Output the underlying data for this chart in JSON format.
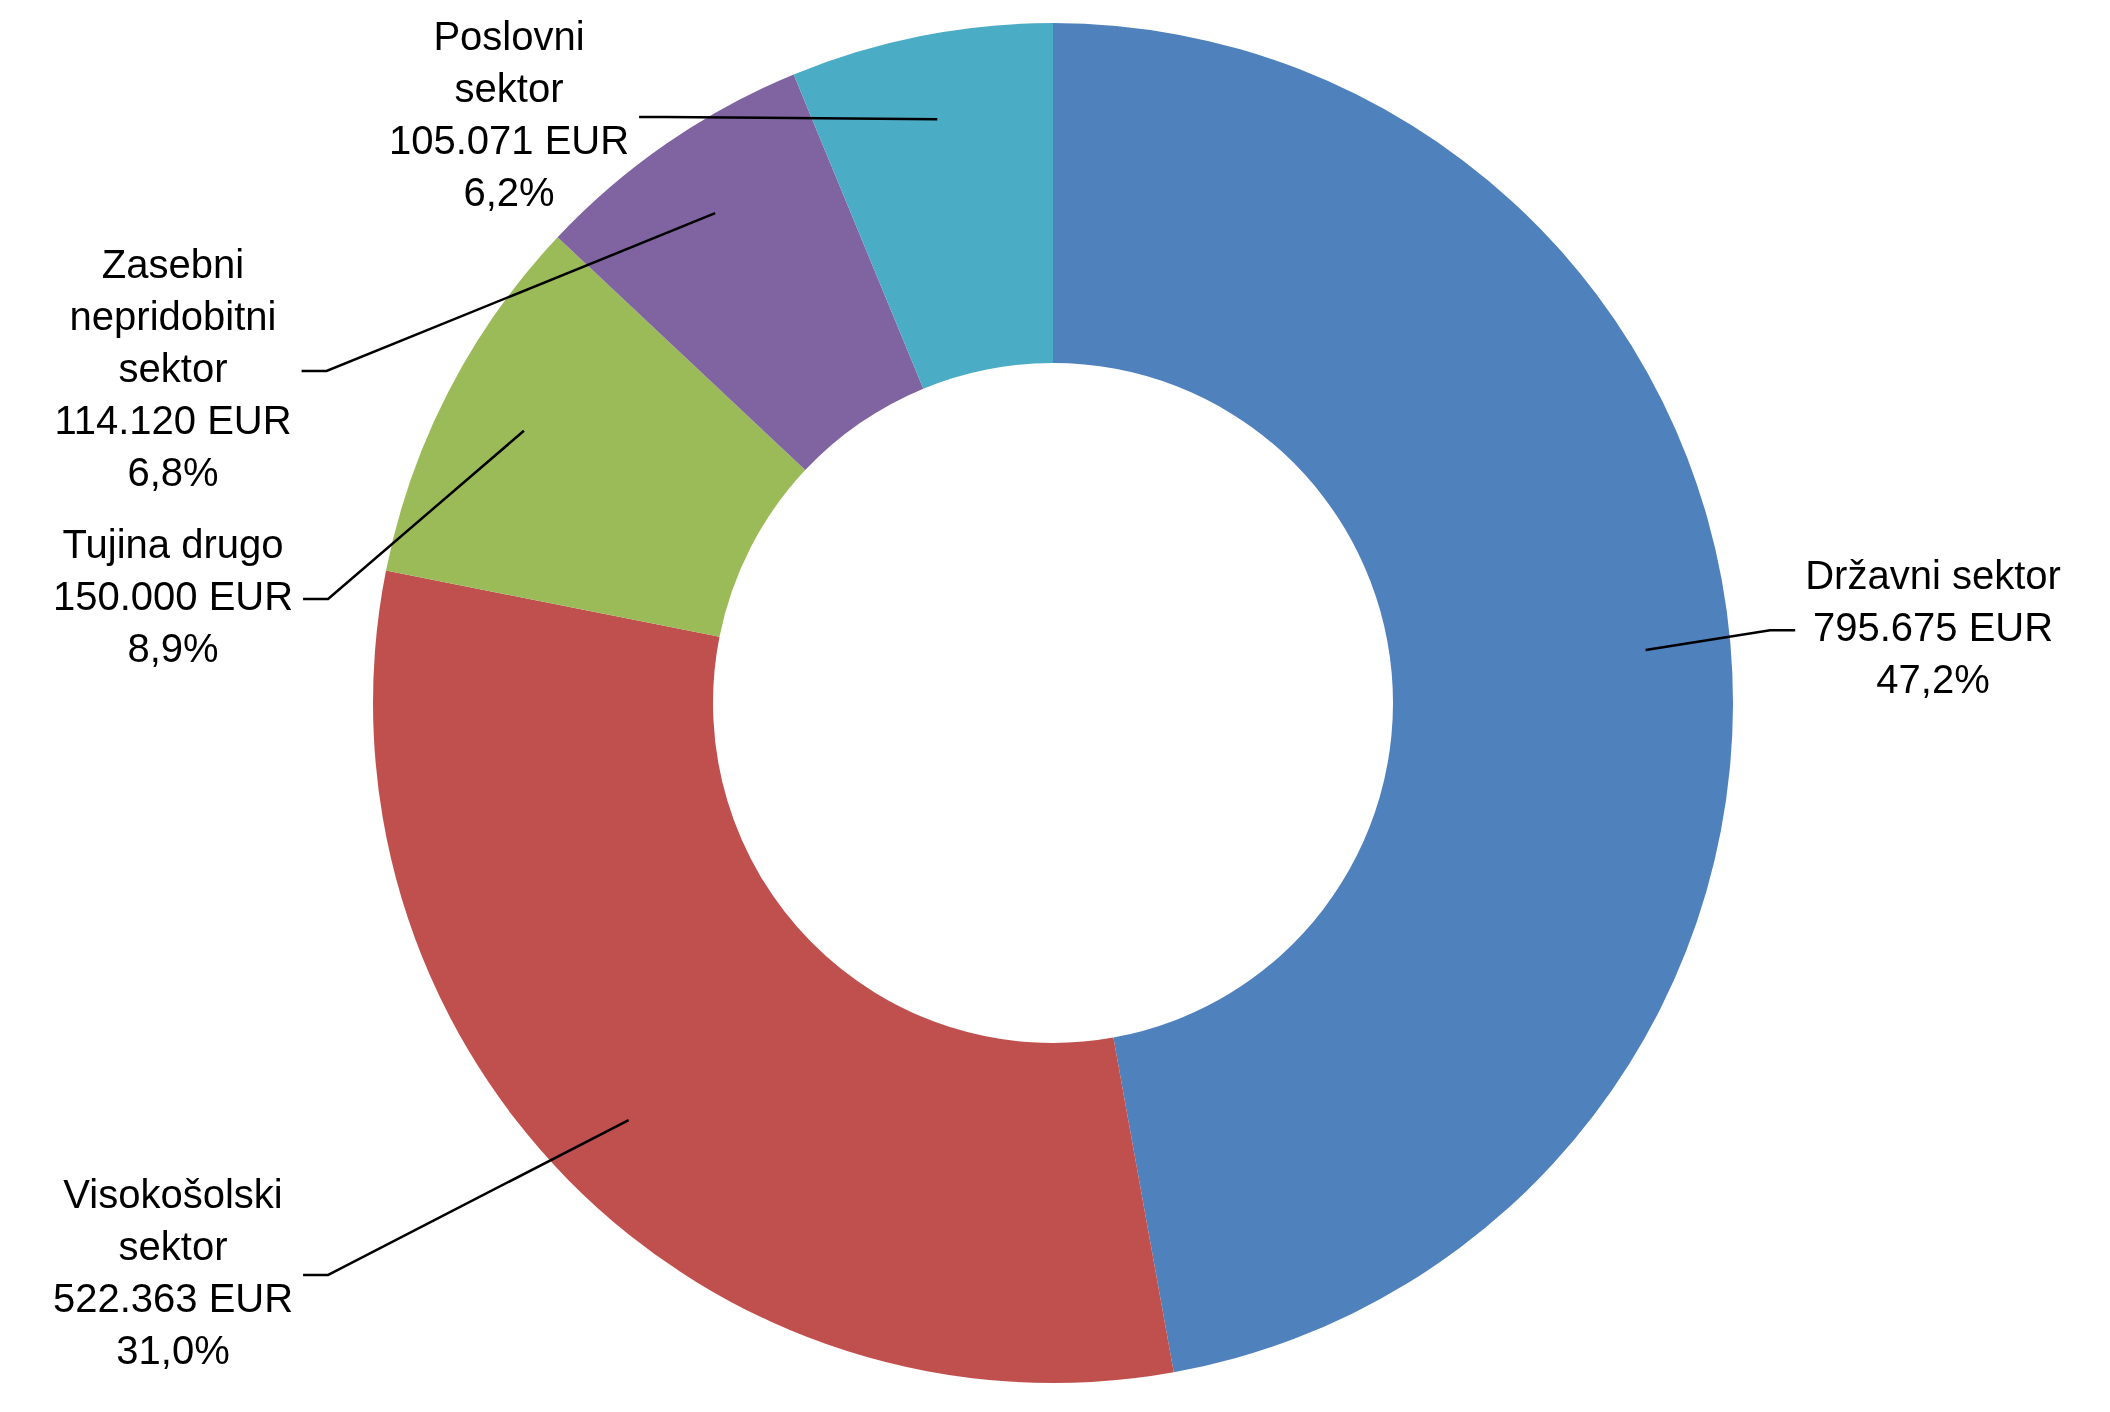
{
  "chart_data": {
    "type": "donut",
    "categories": [
      "Državni sektor",
      "Visokošolski sektor",
      "Tujina drugo",
      "Zasebni nepridobitni sektor",
      "Poslovni sektor"
    ],
    "values": [
      795675,
      522363,
      150000,
      114120,
      105071
    ],
    "colors": [
      "#4f81bd",
      "#c0504d",
      "#9bbb59",
      "#8064a2",
      "#4bacc6"
    ],
    "value_labels": [
      "795.675 EUR\n47,2%",
      "522.363 EUR\n31,0%",
      "150.000 EUR\n8,9%",
      "114.120 EUR\n6,8%",
      "105.071 EUR\n6,2%"
    ]
  }
}
